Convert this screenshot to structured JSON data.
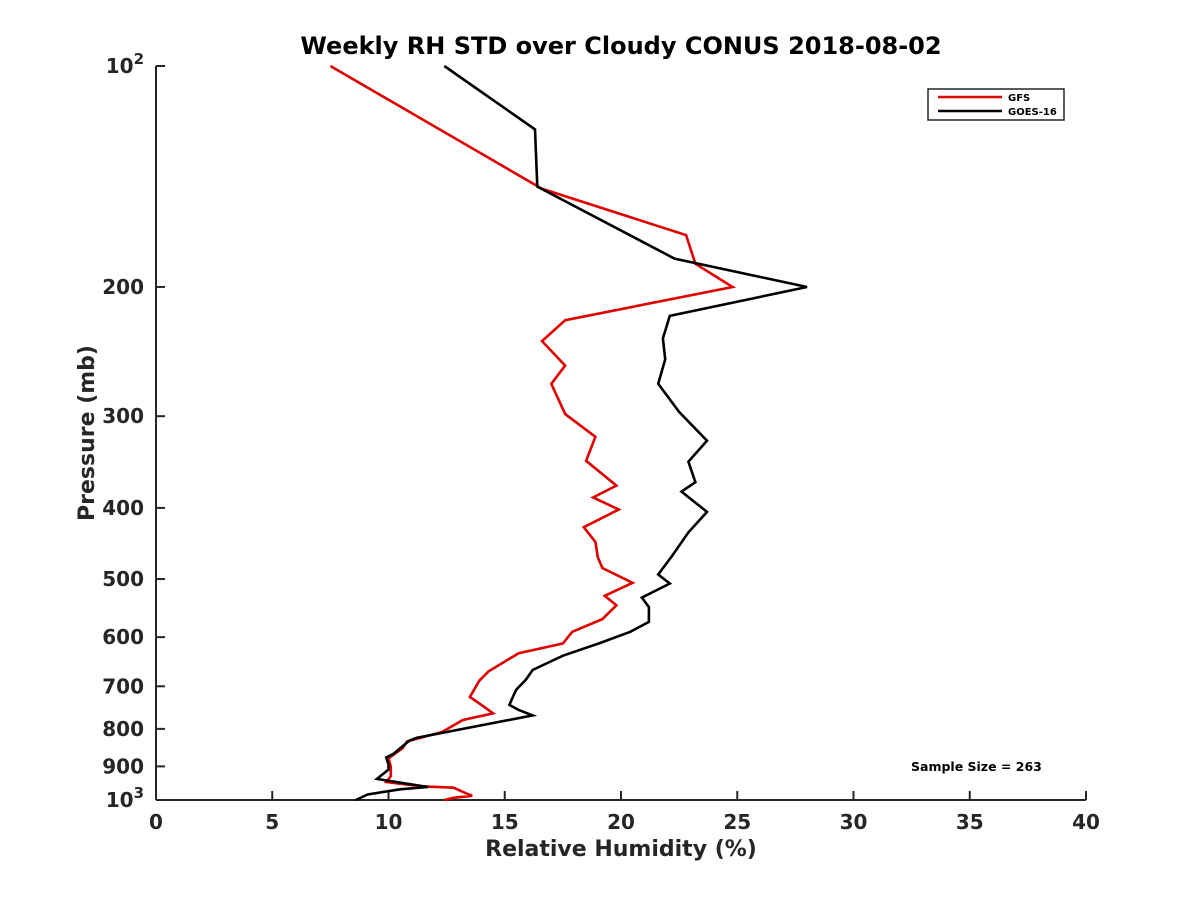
{
  "chart_data": {
    "type": "line",
    "title": "Weekly RH STD over Cloudy CONUS 2018-08-02",
    "xlabel": "Relative Humidity (%)",
    "ylabel": "Pressure (mb)",
    "xlim": [
      0,
      40
    ],
    "ylim": [
      100,
      1000
    ],
    "y_scale": "log",
    "y_reversed": true,
    "x_ticks": [
      0,
      5,
      10,
      15,
      20,
      25,
      30,
      35,
      40
    ],
    "x_tick_labels": [
      "0",
      "5",
      "10",
      "15",
      "20",
      "25",
      "30",
      "35",
      "40"
    ],
    "y_ticks": [
      {
        "value": 100,
        "base": "10",
        "exp": "2"
      },
      {
        "value": 200,
        "base": "200",
        "exp": ""
      },
      {
        "value": 300,
        "base": "300",
        "exp": ""
      },
      {
        "value": 400,
        "base": "400",
        "exp": ""
      },
      {
        "value": 500,
        "base": "500",
        "exp": ""
      },
      {
        "value": 600,
        "base": "600",
        "exp": ""
      },
      {
        "value": 700,
        "base": "700",
        "exp": ""
      },
      {
        "value": 800,
        "base": "800",
        "exp": ""
      },
      {
        "value": 900,
        "base": "900",
        "exp": ""
      },
      {
        "value": 1000,
        "base": "10",
        "exp": "3"
      }
    ],
    "grid": false,
    "legend_position": "top-right",
    "annotation": "Sample Size = 263",
    "series": [
      {
        "name": "GFS",
        "color": "#e00000",
        "points": [
          [
            7.5,
            100
          ],
          [
            16.6,
            147
          ],
          [
            22.8,
            170
          ],
          [
            23.2,
            186
          ],
          [
            24.8,
            200
          ],
          [
            17.6,
            222
          ],
          [
            16.6,
            237
          ],
          [
            17.6,
            256
          ],
          [
            17.0,
            271
          ],
          [
            17.6,
            298
          ],
          [
            18.9,
            320
          ],
          [
            18.5,
            345
          ],
          [
            19.8,
            373
          ],
          [
            18.8,
            387
          ],
          [
            19.9,
            402
          ],
          [
            18.4,
            425
          ],
          [
            18.9,
            445
          ],
          [
            19.0,
            467
          ],
          [
            19.2,
            483
          ],
          [
            20.5,
            506
          ],
          [
            19.3,
            527
          ],
          [
            19.8,
            543
          ],
          [
            19.2,
            567
          ],
          [
            17.9,
            590
          ],
          [
            17.5,
            612
          ],
          [
            15.6,
            631
          ],
          [
            14.3,
            668
          ],
          [
            13.9,
            688
          ],
          [
            13.5,
            724
          ],
          [
            14.1,
            746
          ],
          [
            14.5,
            762
          ],
          [
            13.2,
            778
          ],
          [
            12.3,
            808
          ],
          [
            10.8,
            832
          ],
          [
            10.6,
            850
          ],
          [
            10.0,
            878
          ],
          [
            10.1,
            900
          ],
          [
            10.1,
            928
          ],
          [
            9.9,
            945
          ],
          [
            11.4,
            958
          ],
          [
            12.8,
            962
          ],
          [
            13.3,
            978
          ],
          [
            13.6,
            987
          ],
          [
            12.8,
            993
          ],
          [
            12.4,
            1000
          ]
        ]
      },
      {
        "name": "GOES-16",
        "color": "#000000",
        "points": [
          [
            12.4,
            100
          ],
          [
            16.3,
            122
          ],
          [
            16.4,
            146
          ],
          [
            22.3,
            183
          ],
          [
            28.0,
            200
          ],
          [
            22.1,
            219
          ],
          [
            21.8,
            235
          ],
          [
            21.9,
            251
          ],
          [
            21.6,
            271
          ],
          [
            22.5,
            296
          ],
          [
            23.7,
            324
          ],
          [
            22.9,
            346
          ],
          [
            23.2,
            369
          ],
          [
            22.6,
            380
          ],
          [
            23.7,
            405
          ],
          [
            22.9,
            432
          ],
          [
            22.2,
            465
          ],
          [
            21.6,
            493
          ],
          [
            22.1,
            507
          ],
          [
            20.9,
            530
          ],
          [
            21.2,
            546
          ],
          [
            21.2,
            572
          ],
          [
            20.4,
            590
          ],
          [
            19.1,
            611
          ],
          [
            17.5,
            636
          ],
          [
            16.2,
            665
          ],
          [
            15.9,
            686
          ],
          [
            15.5,
            707
          ],
          [
            15.4,
            718
          ],
          [
            15.2,
            742
          ],
          [
            15.6,
            754
          ],
          [
            16.2,
            767
          ],
          [
            11.2,
            823
          ],
          [
            10.9,
            830
          ],
          [
            10.2,
            866
          ],
          [
            9.9,
            875
          ],
          [
            10.0,
            895
          ],
          [
            10.0,
            909
          ],
          [
            9.5,
            936
          ],
          [
            11.7,
            960
          ],
          [
            10.5,
            967
          ],
          [
            9.1,
            983
          ],
          [
            8.6,
            1000
          ]
        ]
      }
    ]
  }
}
